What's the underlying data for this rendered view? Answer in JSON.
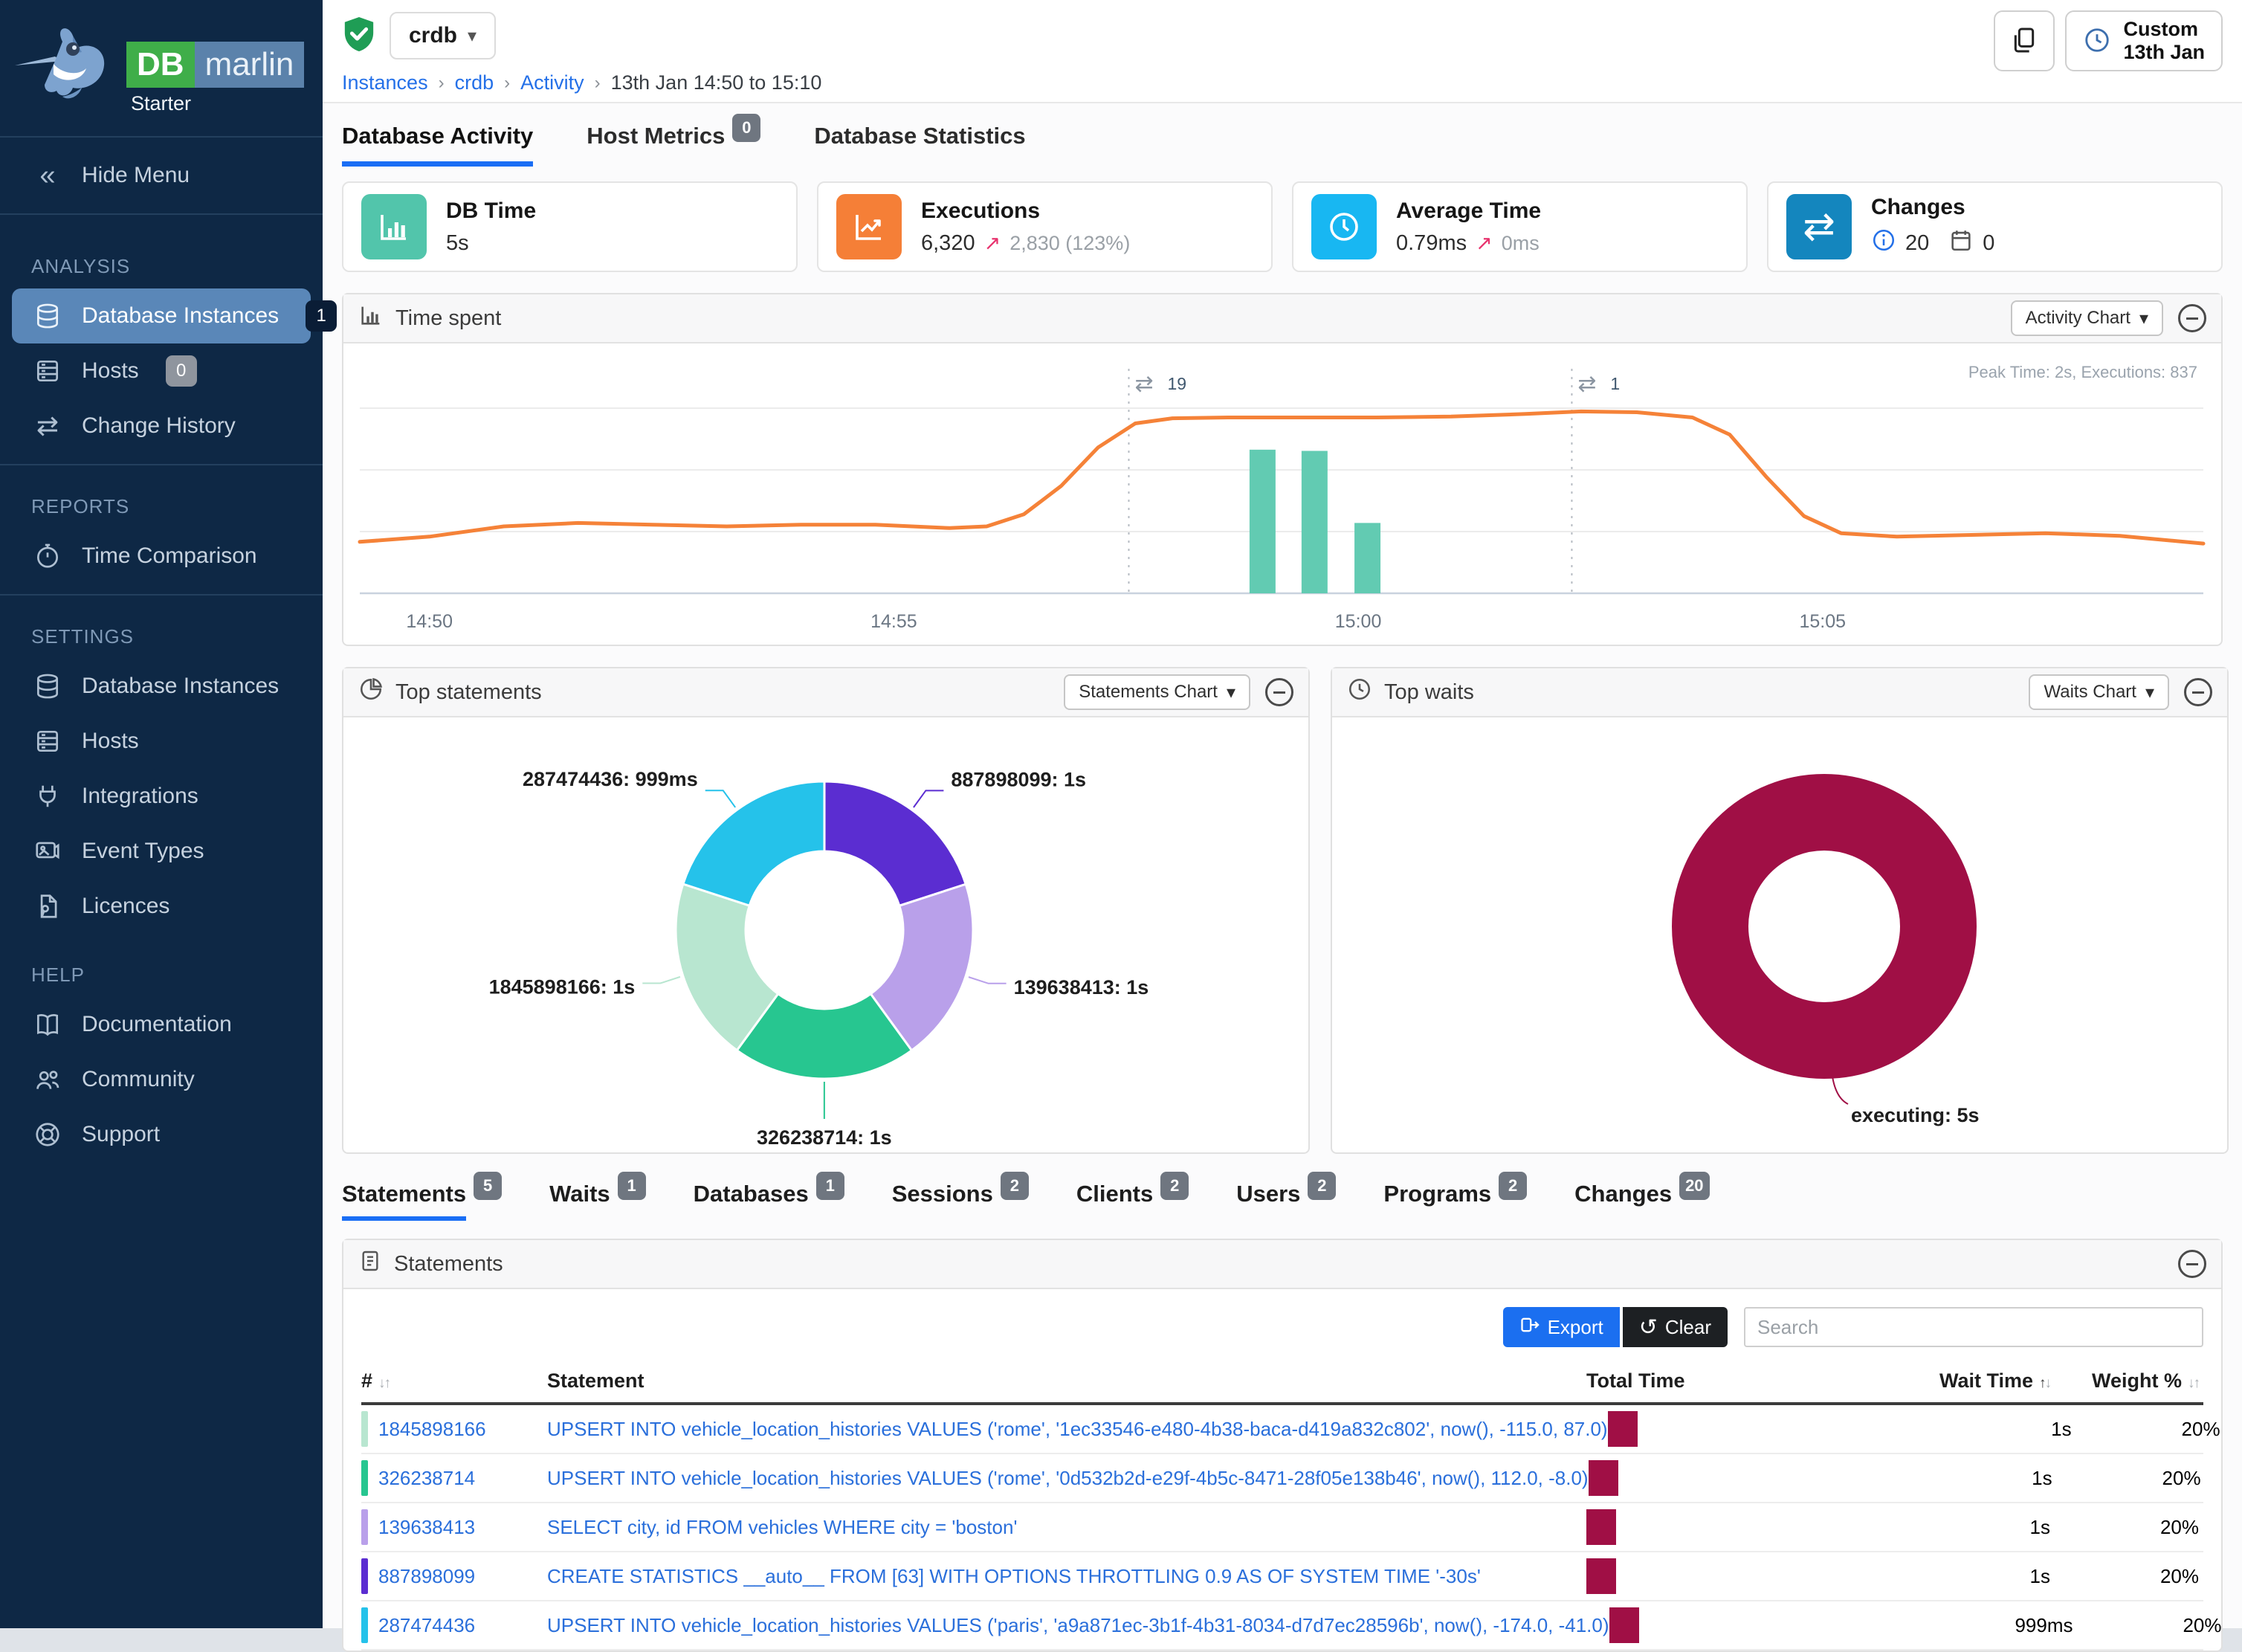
{
  "colors": {
    "accent_blue": "#1a6ef5",
    "link_blue": "#2a6fdb",
    "maroon": "#a00f45",
    "orange_line": "#f58238",
    "teal_bar": "#62cbb2",
    "sidebar_active": "#5a87b8"
  },
  "sidebar": {
    "brand": {
      "db": "DB",
      "marlin": "marlin",
      "tier": "Starter"
    },
    "hide_menu": "Hide Menu",
    "sections": [
      {
        "label": "ANALYSIS",
        "divider_before": false,
        "items": [
          {
            "label": "Database Instances",
            "icon": "database",
            "badge": "1",
            "badge_style": "dark",
            "active": true
          },
          {
            "label": "Hosts",
            "icon": "server",
            "badge": "0",
            "badge_style": "gray"
          },
          {
            "label": "Change History",
            "icon": "transfer"
          }
        ]
      },
      {
        "label": "REPORTS",
        "divider_before": true,
        "items": [
          {
            "label": "Time Comparison",
            "icon": "stopwatch"
          }
        ]
      },
      {
        "label": "SETTINGS",
        "divider_before": true,
        "items": [
          {
            "label": "Database Instances",
            "icon": "database"
          },
          {
            "label": "Hosts",
            "icon": "server"
          },
          {
            "label": "Integrations",
            "icon": "plug"
          },
          {
            "label": "Event Types",
            "icon": "event"
          },
          {
            "label": "Licences",
            "icon": "licence"
          }
        ]
      },
      {
        "label": "HELP",
        "divider_before": false,
        "items": [
          {
            "label": "Documentation",
            "icon": "book"
          },
          {
            "label": "Community",
            "icon": "community"
          },
          {
            "label": "Support",
            "icon": "support"
          }
        ]
      }
    ]
  },
  "header": {
    "instance": "crdb",
    "breadcrumb": [
      "Instances",
      "crdb",
      "Activity",
      "13th Jan 14:50 to 15:10"
    ],
    "time_button": {
      "line1": "Custom",
      "line2": "13th Jan"
    }
  },
  "main_tabs": [
    {
      "label": "Database Activity",
      "active": true
    },
    {
      "label": "Host Metrics",
      "badge": "0"
    },
    {
      "label": "Database Statistics"
    }
  ],
  "cards": {
    "db_time": {
      "title": "DB Time",
      "value": "5s",
      "icon_color": "#52c5ab"
    },
    "executions": {
      "title": "Executions",
      "value": "6,320",
      "delta_arrow": "↗",
      "delta": "2,830 (123%)",
      "icon_color": "#f57f37"
    },
    "average_time": {
      "title": "Average Time",
      "value": "0.79ms",
      "delta_arrow": "↗",
      "delta": "0ms",
      "icon_color": "#18b7f2"
    },
    "changes": {
      "title": "Changes",
      "info_count": "20",
      "event_count": "0",
      "icon_color": "#1486be"
    }
  },
  "time_spent": {
    "title": "Time spent",
    "menu_label": "Activity Chart",
    "peak_label": "Peak Time: 2s, Executions: 837",
    "chart_data": {
      "type": "line",
      "title": "Time spent",
      "x_unit": "minutes after 14:50",
      "x_domain": [
        -0.75,
        19.1
      ],
      "y_max_seconds": 2.6,
      "x_ticks": [
        {
          "m": 0,
          "label": "14:50"
        },
        {
          "m": 5,
          "label": "14:55"
        },
        {
          "m": 10,
          "label": "15:00"
        },
        {
          "m": 15,
          "label": "15:05"
        }
      ],
      "line_series": {
        "name": "DB Time (s)",
        "color": "#f58238",
        "points": [
          [
            -0.75,
            0.6
          ],
          [
            0,
            0.66
          ],
          [
            0.8,
            0.78
          ],
          [
            1.6,
            0.82
          ],
          [
            2.4,
            0.8
          ],
          [
            3.2,
            0.78
          ],
          [
            4.0,
            0.8
          ],
          [
            4.8,
            0.8
          ],
          [
            5.6,
            0.76
          ],
          [
            6.0,
            0.78
          ],
          [
            6.4,
            0.92
          ],
          [
            6.8,
            1.25
          ],
          [
            7.2,
            1.7
          ],
          [
            7.6,
            1.98
          ],
          [
            8.0,
            2.04
          ],
          [
            8.6,
            2.05
          ],
          [
            9.4,
            2.05
          ],
          [
            10.2,
            2.05
          ],
          [
            11.0,
            2.06
          ],
          [
            11.8,
            2.09
          ],
          [
            12.4,
            2.12
          ],
          [
            13.0,
            2.11
          ],
          [
            13.6,
            2.05
          ],
          [
            14.0,
            1.85
          ],
          [
            14.4,
            1.35
          ],
          [
            14.8,
            0.9
          ],
          [
            15.2,
            0.7
          ],
          [
            15.8,
            0.66
          ],
          [
            16.6,
            0.68
          ],
          [
            17.4,
            0.7
          ],
          [
            18.2,
            0.67
          ],
          [
            19.1,
            0.58
          ]
        ]
      },
      "bar_series": {
        "name": "Executions",
        "color": "#62cbb2",
        "axis_max": 1300,
        "bar_width_min": 0.28,
        "points": [
          [
            8.97,
            837
          ],
          [
            9.53,
            830
          ],
          [
            10.1,
            410
          ]
        ]
      },
      "annotations": [
        {
          "m": 7.53,
          "icon": "⇄",
          "label": "19"
        },
        {
          "m": 12.3,
          "icon": "⇄",
          "label": "1"
        }
      ]
    }
  },
  "top_statements": {
    "title": "Top statements",
    "menu_label": "Statements Chart",
    "chart_data": {
      "type": "pie",
      "start_angle_deg": -90,
      "slices": [
        {
          "label": "887898099",
          "value_label": "1s",
          "value": 1,
          "color": "#5b2dd1"
        },
        {
          "label": "139638413",
          "value_label": "1s",
          "value": 1,
          "color": "#b9a0ea"
        },
        {
          "label": "326238714",
          "value_label": "1s",
          "value": 1,
          "color": "#27c690"
        },
        {
          "label": "1845898166",
          "value_label": "1s",
          "value": 1,
          "color": "#b8e6d0"
        },
        {
          "label": "287474436",
          "value_label": "999ms",
          "value": 0.999,
          "color": "#25c2ea"
        }
      ]
    }
  },
  "top_waits": {
    "title": "Top waits",
    "menu_label": "Waits Chart",
    "chart_data": {
      "type": "pie",
      "slices": [
        {
          "label": "executing",
          "value_label": "5s",
          "value": 5,
          "color": "#a00f45"
        }
      ]
    }
  },
  "detail_tabs": [
    {
      "label": "Statements",
      "badge": "5",
      "active": true
    },
    {
      "label": "Waits",
      "badge": "1"
    },
    {
      "label": "Databases",
      "badge": "1"
    },
    {
      "label": "Sessions",
      "badge": "2"
    },
    {
      "label": "Clients",
      "badge": "2"
    },
    {
      "label": "Users",
      "badge": "2"
    },
    {
      "label": "Programs",
      "badge": "2"
    },
    {
      "label": "Changes",
      "badge": "20"
    }
  ],
  "statements_panel": {
    "title": "Statements",
    "export_label": "Export",
    "clear_label": "Clear",
    "search_placeholder": "Search",
    "columns": [
      "#",
      "Statement",
      "Total Time",
      "Wait Time",
      "Weight %"
    ],
    "rows": [
      {
        "id": "1845898166",
        "color": "#b8e6d0",
        "sql": "UPSERT INTO vehicle_location_histories VALUES ('rome', '1ec33546-e480-4b38-baca-d419a832c802', now(), -115.0, 87.0)",
        "wait_time": "1s",
        "weight": "20%"
      },
      {
        "id": "326238714",
        "color": "#27c690",
        "sql": "UPSERT INTO vehicle_location_histories VALUES ('rome', '0d532b2d-e29f-4b5c-8471-28f05e138b46', now(), 112.0, -8.0)",
        "wait_time": "1s",
        "weight": "20%"
      },
      {
        "id": "139638413",
        "color": "#b9a0ea",
        "sql": "SELECT city, id FROM vehicles WHERE city = 'boston'",
        "wait_time": "1s",
        "weight": "20%"
      },
      {
        "id": "887898099",
        "color": "#5b2dd1",
        "sql": "CREATE STATISTICS __auto__ FROM [63] WITH OPTIONS THROTTLING 0.9 AS OF SYSTEM TIME '-30s'",
        "wait_time": "1s",
        "weight": "20%"
      },
      {
        "id": "287474436",
        "color": "#25c2ea",
        "sql": "UPSERT INTO vehicle_location_histories VALUES ('paris', 'a9a871ec-3b1f-4b31-8034-d7d7ec28596b', now(), -174.0, -41.0)",
        "wait_time": "999ms",
        "weight": "20%"
      }
    ]
  }
}
